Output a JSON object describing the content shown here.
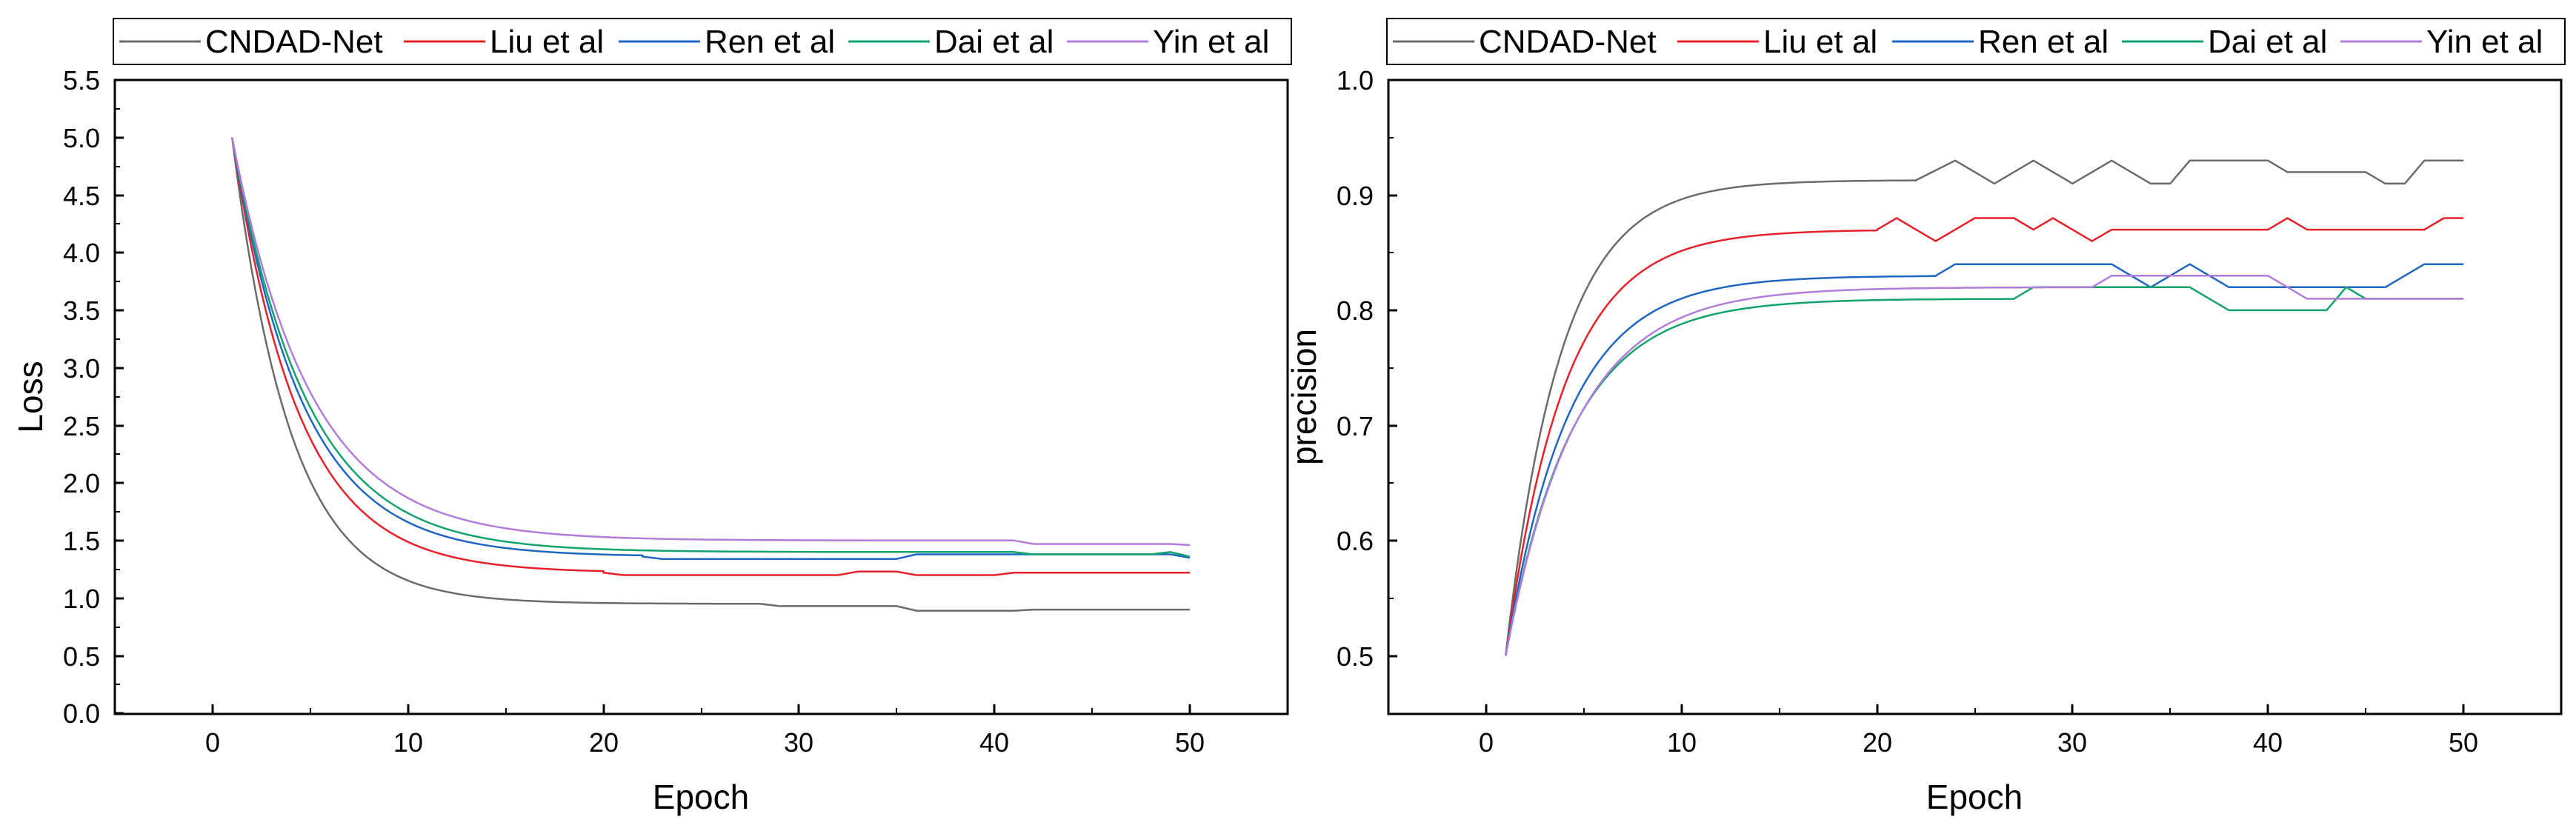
{
  "chart_data": [
    {
      "type": "line",
      "xlabel": "Epoch",
      "ylabel": "Loss",
      "xlim": [
        -5,
        55
      ],
      "ylim": [
        0.0,
        5.5
      ],
      "xticks": [
        "0",
        "10",
        "20",
        "30",
        "40",
        "50"
      ],
      "yticks": [
        "0.0",
        "0.5",
        "1.0",
        "1.5",
        "2.0",
        "2.5",
        "3.0",
        "3.5",
        "4.0",
        "4.5",
        "5.0",
        "5.5"
      ],
      "legend": "top",
      "series": [
        {
          "name": "CNDAD-Net",
          "color": "#6b6b6b",
          "start": 5.0,
          "plateau": 0.95,
          "tau": 3.0,
          "tail": [
            [
              28,
              0.95
            ],
            [
              29,
              0.93
            ],
            [
              35,
              0.93
            ],
            [
              36,
              0.89
            ],
            [
              41,
              0.89
            ],
            [
              42,
              0.9
            ],
            [
              50,
              0.9
            ]
          ]
        },
        {
          "name": "Liu et al",
          "color": "#e8202a",
          "start": 5.0,
          "plateau": 1.22,
          "tau": 3.4,
          "tail": [
            [
              20,
              1.22
            ],
            [
              21,
              1.2
            ],
            [
              32,
              1.2
            ],
            [
              33,
              1.23
            ],
            [
              35,
              1.23
            ],
            [
              36,
              1.2
            ],
            [
              40,
              1.2
            ],
            [
              41,
              1.22
            ],
            [
              50,
              1.22
            ]
          ]
        },
        {
          "name": "Ren et al",
          "color": "#1f66c4",
          "start": 5.0,
          "plateau": 1.36,
          "tau": 3.6,
          "tail": [
            [
              22,
              1.36
            ],
            [
              23,
              1.34
            ],
            [
              35,
              1.34
            ],
            [
              36,
              1.38
            ],
            [
              48,
              1.38
            ],
            [
              49,
              1.38
            ],
            [
              50,
              1.35
            ]
          ]
        },
        {
          "name": "Dai et al",
          "color": "#12a36b",
          "start": 5.0,
          "plateau": 1.4,
          "tau": 3.8,
          "tail": [
            [
              41,
              1.4
            ],
            [
              42,
              1.38
            ],
            [
              48,
              1.38
            ],
            [
              49,
              1.4
            ],
            [
              50,
              1.36
            ]
          ]
        },
        {
          "name": "Yin et al",
          "color": "#b07ddb",
          "start": 5.0,
          "plateau": 1.5,
          "tau": 4.0,
          "tail": [
            [
              41,
              1.5
            ],
            [
              42,
              1.47
            ],
            [
              49,
              1.47
            ],
            [
              50,
              1.46
            ]
          ]
        }
      ]
    },
    {
      "type": "line",
      "xlabel": "Epoch",
      "ylabel": "precision",
      "xlim": [
        -5,
        55
      ],
      "ylim": [
        0.45,
        1.0
      ],
      "xticks": [
        "0",
        "10",
        "20",
        "30",
        "40",
        "50"
      ],
      "yticks": [
        "0.5",
        "0.6",
        "0.7",
        "0.8",
        "0.9",
        "1.0"
      ],
      "legend": "top",
      "series": [
        {
          "name": "CNDAD-Net",
          "color": "#6b6b6b",
          "start": 0.5,
          "plateau": 0.913,
          "tau": 2.8,
          "tail": [
            [
              22,
              0.913
            ],
            [
              24,
              0.93
            ],
            [
              26,
              0.91
            ],
            [
              28,
              0.93
            ],
            [
              30,
              0.91
            ],
            [
              32,
              0.93
            ],
            [
              34,
              0.91
            ],
            [
              35,
              0.91
            ],
            [
              36,
              0.93
            ],
            [
              40,
              0.93
            ],
            [
              41,
              0.92
            ],
            [
              45,
              0.92
            ],
            [
              46,
              0.91
            ],
            [
              47,
              0.91
            ],
            [
              48,
              0.93
            ],
            [
              50,
              0.93
            ]
          ]
        },
        {
          "name": "Liu et al",
          "color": "#e8202a",
          "start": 0.5,
          "plateau": 0.87,
          "tau": 3.0,
          "tail": [
            [
              20,
              0.87
            ],
            [
              21,
              0.88
            ],
            [
              22,
              0.87
            ],
            [
              23,
              0.86
            ],
            [
              25,
              0.88
            ],
            [
              27,
              0.88
            ],
            [
              28,
              0.87
            ],
            [
              29,
              0.88
            ],
            [
              31,
              0.86
            ],
            [
              32,
              0.87
            ],
            [
              40,
              0.87
            ],
            [
              41,
              0.88
            ],
            [
              42,
              0.87
            ],
            [
              48,
              0.87
            ],
            [
              49,
              0.88
            ],
            [
              50,
              0.88
            ]
          ]
        },
        {
          "name": "Ren et al",
          "color": "#1f66c4",
          "start": 0.5,
          "plateau": 0.83,
          "tau": 3.2,
          "tail": [
            [
              23,
              0.83
            ],
            [
              24,
              0.84
            ],
            [
              32,
              0.84
            ],
            [
              34,
              0.82
            ],
            [
              36,
              0.84
            ],
            [
              38,
              0.82
            ],
            [
              46,
              0.82
            ],
            [
              48,
              0.84
            ],
            [
              50,
              0.84
            ]
          ]
        },
        {
          "name": "Dai et al",
          "color": "#12a36b",
          "start": 0.5,
          "plateau": 0.81,
          "tau": 3.4,
          "tail": [
            [
              27,
              0.81
            ],
            [
              28,
              0.82
            ],
            [
              36,
              0.82
            ],
            [
              38,
              0.8
            ],
            [
              43,
              0.8
            ],
            [
              44,
              0.82
            ],
            [
              45,
              0.81
            ],
            [
              50,
              0.81
            ]
          ]
        },
        {
          "name": "Yin et al",
          "color": "#b07ddb",
          "start": 0.5,
          "plateau": 0.82,
          "tau": 3.6,
          "tail": [
            [
              31,
              0.82
            ],
            [
              32,
              0.83
            ],
            [
              40,
              0.83
            ],
            [
              41,
              0.82
            ],
            [
              42,
              0.81
            ],
            [
              50,
              0.81
            ]
          ]
        }
      ]
    }
  ]
}
